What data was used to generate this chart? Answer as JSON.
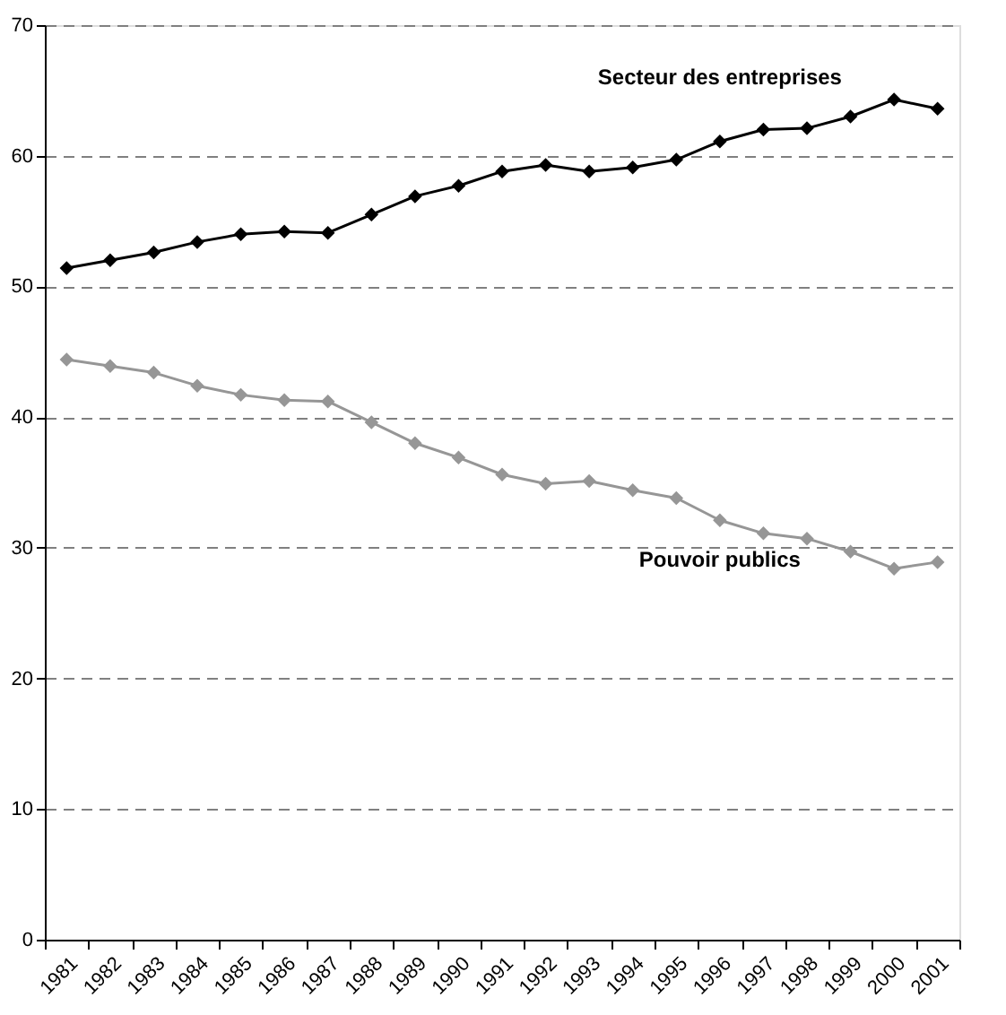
{
  "chart_data": {
    "type": "line",
    "categories": [
      "1981",
      "1982",
      "1983",
      "1984",
      "1985",
      "1986",
      "1987",
      "1988",
      "1989",
      "1990",
      "1991",
      "1992",
      "1993",
      "1994",
      "1995",
      "1996",
      "1997",
      "1998",
      "1999",
      "2000",
      "2001"
    ],
    "series": [
      {
        "name": "Secteur des entreprises",
        "color": "#000000",
        "values": [
          51.4,
          52.0,
          52.6,
          53.4,
          54.0,
          54.2,
          54.1,
          55.5,
          56.9,
          57.7,
          58.8,
          59.3,
          58.8,
          59.1,
          59.7,
          61.1,
          62.0,
          62.1,
          63.0,
          64.3,
          63.6
        ]
      },
      {
        "name": "Pouvoir publics",
        "color": "#969696",
        "values": [
          44.4,
          43.9,
          43.4,
          42.4,
          41.7,
          41.3,
          41.2,
          39.6,
          38.0,
          36.9,
          35.6,
          34.9,
          35.1,
          34.4,
          33.8,
          32.1,
          31.1,
          30.7,
          29.7,
          28.4,
          28.9
        ]
      }
    ],
    "ylim": [
      0,
      70
    ],
    "yticks": [
      0,
      10,
      20,
      30,
      40,
      50,
      60,
      70
    ],
    "grid": "y",
    "marker": "diamond",
    "line_style": "solid",
    "legend": false
  }
}
